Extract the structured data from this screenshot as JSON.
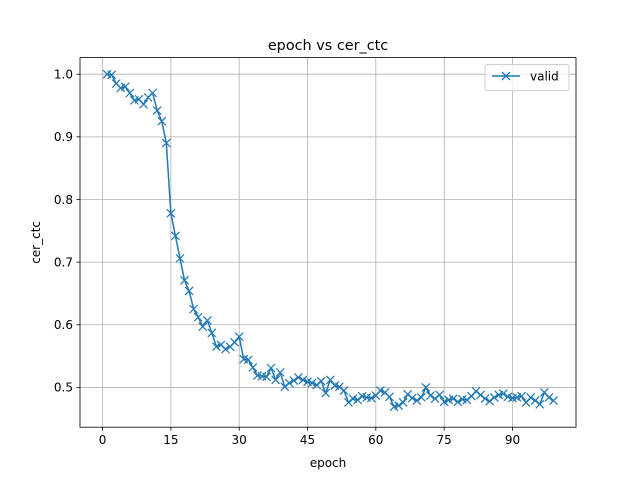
{
  "chart_data": {
    "type": "line",
    "title": "epoch vs cer_ctc",
    "xlabel": "epoch",
    "ylabel": "cer_ctc",
    "xlim": [
      -4.95,
      103.95
    ],
    "ylim": [
      0.4365,
      1.0265
    ],
    "xticks": [
      0,
      15,
      30,
      45,
      60,
      75,
      90
    ],
    "xtick_labels": [
      "0",
      "15",
      "30",
      "45",
      "60",
      "75",
      "90"
    ],
    "yticks": [
      0.5,
      0.6,
      0.7,
      0.8,
      0.9,
      1.0
    ],
    "ytick_labels": [
      "0.5",
      "0.6",
      "0.7",
      "0.8",
      "0.9",
      "1.0"
    ],
    "grid": true,
    "legend_position": "top-right",
    "series": [
      {
        "name": "valid",
        "color": "#1f77b4",
        "marker": "x",
        "x": [
          1,
          2,
          3,
          4,
          5,
          6,
          7,
          8,
          9,
          10,
          11,
          12,
          13,
          14,
          15,
          16,
          17,
          18,
          19,
          20,
          21,
          22,
          23,
          24,
          25,
          26,
          27,
          28,
          29,
          30,
          31,
          32,
          33,
          34,
          35,
          36,
          37,
          38,
          39,
          40,
          41,
          42,
          43,
          44,
          45,
          46,
          47,
          48,
          49,
          50,
          51,
          52,
          53,
          54,
          55,
          56,
          57,
          58,
          59,
          60,
          61,
          62,
          63,
          64,
          65,
          66,
          67,
          68,
          69,
          70,
          71,
          72,
          73,
          74,
          75,
          76,
          77,
          78,
          79,
          80,
          81,
          82,
          83,
          84,
          85,
          86,
          87,
          88,
          89,
          90,
          91,
          92,
          93,
          94,
          95,
          96,
          97,
          98,
          99
        ],
        "y": [
          1.0,
          0.999,
          0.985,
          0.978,
          0.98,
          0.97,
          0.958,
          0.96,
          0.952,
          0.963,
          0.97,
          0.942,
          0.925,
          0.89,
          0.778,
          0.742,
          0.706,
          0.671,
          0.654,
          0.625,
          0.612,
          0.597,
          0.607,
          0.587,
          0.565,
          0.568,
          0.561,
          0.565,
          0.572,
          0.581,
          0.545,
          0.544,
          0.532,
          0.519,
          0.518,
          0.517,
          0.531,
          0.512,
          0.524,
          0.501,
          0.507,
          0.511,
          0.516,
          0.512,
          0.509,
          0.507,
          0.504,
          0.51,
          0.491,
          0.512,
          0.503,
          0.501,
          0.495,
          0.476,
          0.482,
          0.48,
          0.486,
          0.484,
          0.483,
          0.487,
          0.495,
          0.492,
          0.485,
          0.469,
          0.471,
          0.476,
          0.489,
          0.483,
          0.479,
          0.484,
          0.5,
          0.487,
          0.482,
          0.488,
          0.477,
          0.48,
          0.482,
          0.477,
          0.481,
          0.48,
          0.486,
          0.494,
          0.488,
          0.482,
          0.478,
          0.484,
          0.488,
          0.49,
          0.485,
          0.483,
          0.484,
          0.486,
          0.476,
          0.484,
          0.479,
          0.473,
          0.492,
          0.484,
          0.479
        ]
      }
    ]
  }
}
